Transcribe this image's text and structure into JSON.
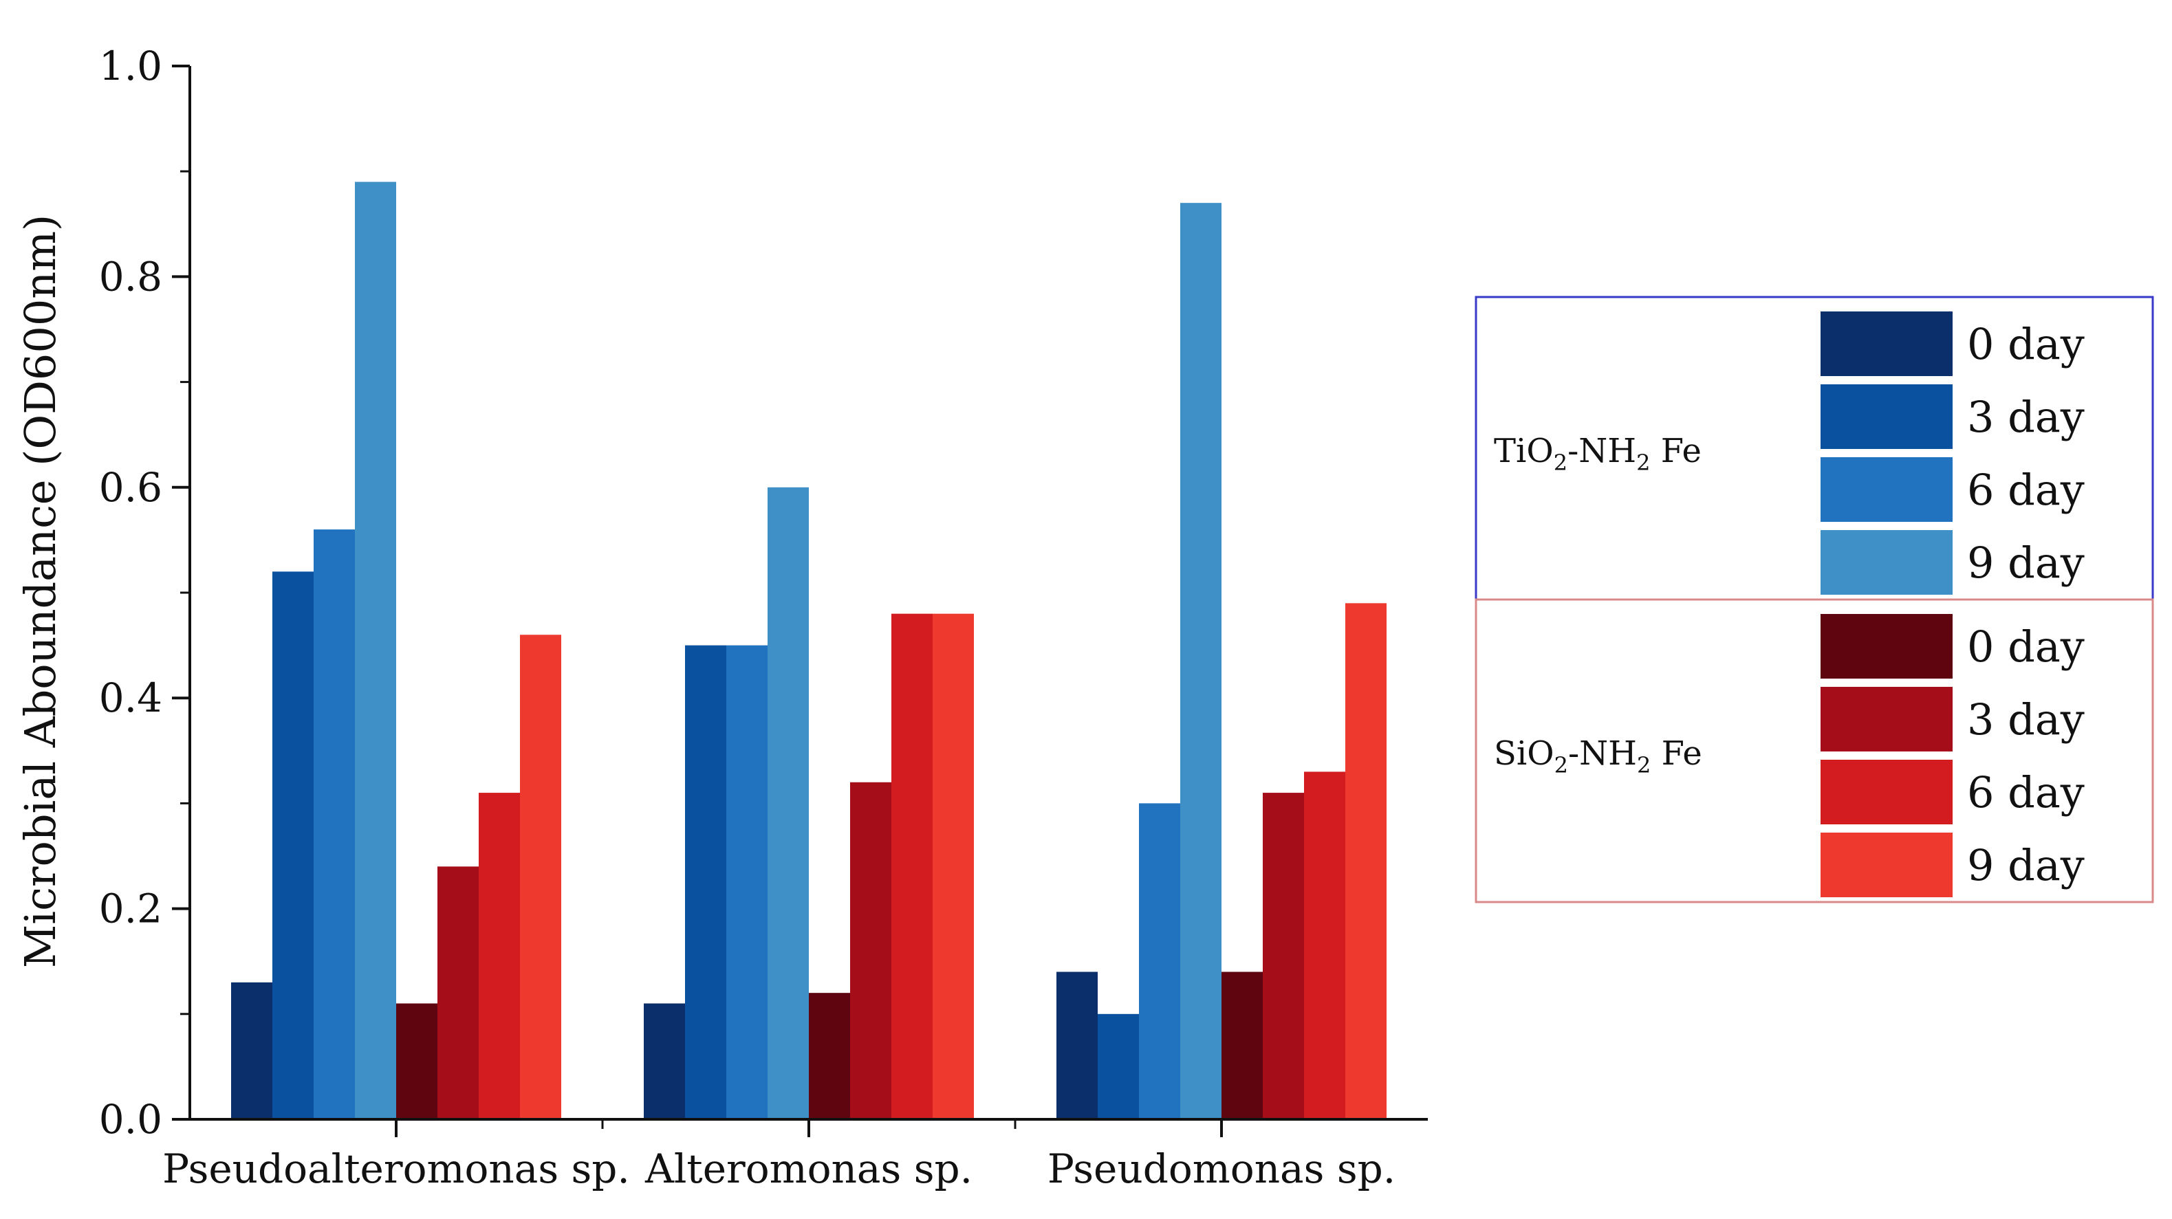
{
  "chart_data": {
    "type": "bar",
    "title": "",
    "xlabel": "",
    "ylabel": "Microbial Aboundance (OD600nm)",
    "ylim": [
      0,
      1.0
    ],
    "yticks": [
      "0.0",
      "0.2",
      "0.4",
      "0.6",
      "0.8",
      "1.0"
    ],
    "categories": [
      "Pseudoalteromonas sp.",
      "Alteromonas sp.",
      "Pseudomonas sp."
    ],
    "grid": false,
    "legend_position": "right",
    "series": [
      {
        "name": "0 day",
        "group": "TiO2-NH2 Fe",
        "color": "#0b2f6b",
        "values": [
          0.13,
          0.11,
          0.14
        ]
      },
      {
        "name": "3 day",
        "group": "TiO2-NH2 Fe",
        "color": "#0a52a0",
        "values": [
          0.52,
          0.45,
          0.1
        ]
      },
      {
        "name": "6 day",
        "group": "TiO2-NH2 Fe",
        "color": "#2273bf",
        "values": [
          0.56,
          0.45,
          0.3
        ]
      },
      {
        "name": "9 day",
        "group": "TiO2-NH2 Fe",
        "color": "#4090c8",
        "values": [
          0.89,
          0.6,
          0.87
        ]
      },
      {
        "name": "0 day",
        "group": "SiO2-NH2 Fe",
        "color": "#5e0510",
        "values": [
          0.11,
          0.12,
          0.14
        ]
      },
      {
        "name": "3 day",
        "group": "SiO2-NH2 Fe",
        "color": "#a50d18",
        "values": [
          0.24,
          0.32,
          0.31
        ]
      },
      {
        "name": "6 day",
        "group": "SiO2-NH2 Fe",
        "color": "#d21c20",
        "values": [
          0.31,
          0.48,
          0.33
        ]
      },
      {
        "name": "9 day",
        "group": "SiO2-NH2 Fe",
        "color": "#ee3a2e",
        "values": [
          0.46,
          0.48,
          0.49
        ]
      }
    ],
    "legend_groups": [
      {
        "main": "TiO",
        "sub1": "2",
        "mid": "-NH",
        "sub2": "2",
        "tail": " Fe",
        "border_color": "#3a3ac8"
      },
      {
        "main": "SiO",
        "sub1": "2",
        "mid": "-NH",
        "sub2": "2",
        "tail": " Fe",
        "border_color": "#d88a8a"
      }
    ]
  }
}
